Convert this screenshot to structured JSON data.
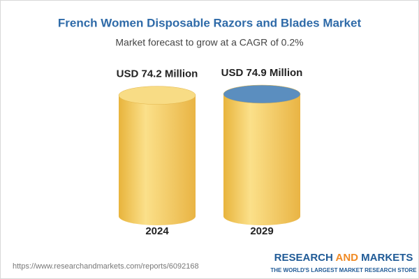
{
  "chart_data": {
    "type": "cylinder",
    "title": "French Women Disposable Razors and Blades Market",
    "subtitle": "Market forecast to grow at a CAGR of 0.2%",
    "categories": [
      "2024",
      "2029"
    ],
    "values": [
      74.2,
      74.9
    ],
    "value_labels": [
      "USD 74.2 Million",
      "USD 74.9 Million"
    ],
    "color": "#f3c552",
    "top_colors": [
      "#f8dc85",
      "#5b8ebf"
    ],
    "source": "https://www.researchandmarkets.com/reports/6092168",
    "brand": [
      "RESEARCH",
      "AND",
      "MARKETS"
    ],
    "tagline": "THE WORLD'S LARGEST MARKET RESEARCH STORE"
  }
}
